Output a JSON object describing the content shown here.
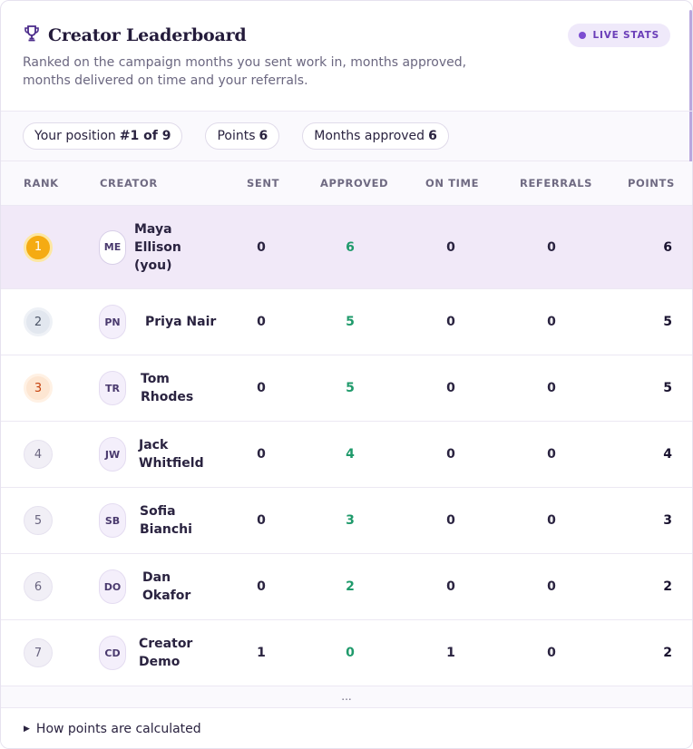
{
  "header": {
    "title": "Creator Leaderboard",
    "subtitle": "Ranked on the campaign months you sent work in, months approved, months delivered on time and your referrals.",
    "live_label": "LIVE STATS",
    "icon": "trophy-icon"
  },
  "chips": {
    "position_label": "Your position",
    "position_value": "#1 of 9",
    "points_label": "Points",
    "points_value": "6",
    "approved_label": "Months approved",
    "approved_value": "6"
  },
  "table": {
    "columns": [
      "RANK",
      "CREATOR",
      "SENT",
      "APPROVED",
      "ON TIME",
      "REFERRALS",
      "POINTS"
    ],
    "rows": [
      {
        "rank": "1",
        "initials": "ME",
        "name": "Maya Ellison (you)",
        "sent": "0",
        "approved": "6",
        "on_time": "0",
        "referrals": "0",
        "points": "6"
      },
      {
        "rank": "2",
        "initials": "PN",
        "name": "Priya Nair",
        "sent": "0",
        "approved": "5",
        "on_time": "0",
        "referrals": "0",
        "points": "5"
      },
      {
        "rank": "3",
        "initials": "TR",
        "name": "Tom Rhodes",
        "sent": "0",
        "approved": "5",
        "on_time": "0",
        "referrals": "0",
        "points": "5"
      },
      {
        "rank": "4",
        "initials": "JW",
        "name": "Jack Whitfield",
        "sent": "0",
        "approved": "4",
        "on_time": "0",
        "referrals": "0",
        "points": "4"
      },
      {
        "rank": "5",
        "initials": "SB",
        "name": "Sofia Bianchi",
        "sent": "0",
        "approved": "3",
        "on_time": "0",
        "referrals": "0",
        "points": "3"
      },
      {
        "rank": "6",
        "initials": "DO",
        "name": "Dan Okafor",
        "sent": "0",
        "approved": "2",
        "on_time": "0",
        "referrals": "0",
        "points": "2"
      },
      {
        "rank": "7",
        "initials": "CD",
        "name": "Creator Demo",
        "sent": "1",
        "approved": "0",
        "on_time": "1",
        "referrals": "0",
        "points": "2"
      }
    ],
    "ellipsis": "..."
  },
  "footer": {
    "label": "How points are calculated"
  },
  "colors": {
    "accent": "#7c4dd1",
    "approved_green": "#1f9a6b",
    "gold": "#f5ab12",
    "highlight_row": "#f1e9f8"
  }
}
